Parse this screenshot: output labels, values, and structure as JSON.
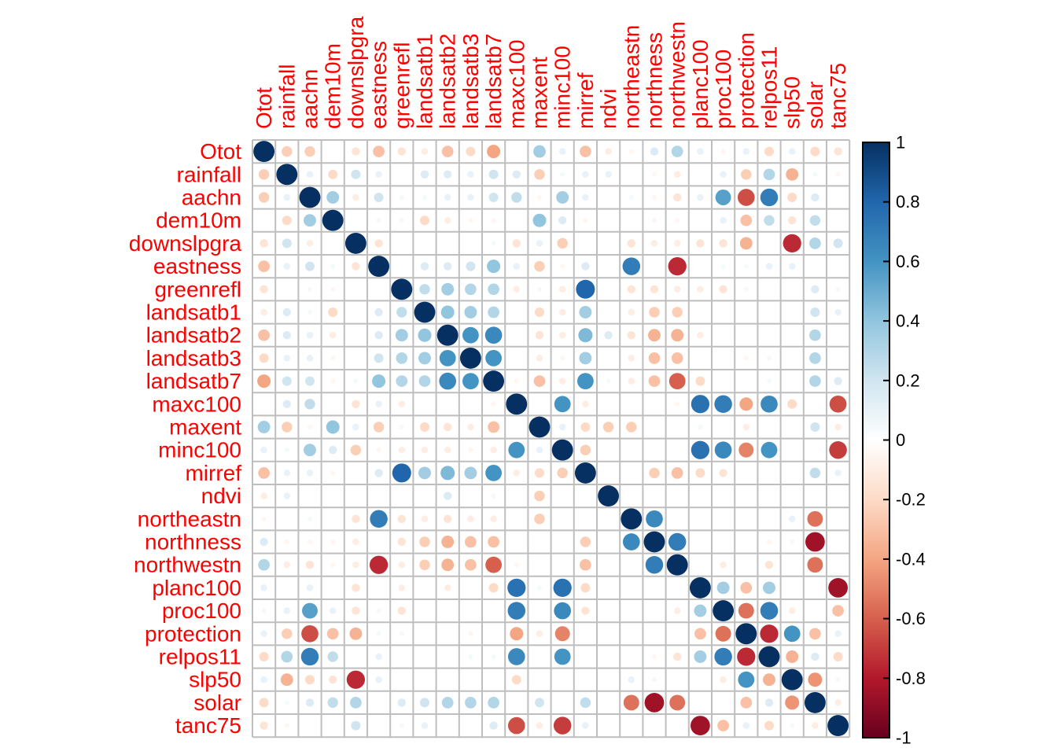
{
  "chart_data": {
    "type": "heatmap",
    "title": "",
    "variables": [
      "Otot",
      "rainfall",
      "aachn",
      "dem10m",
      "downslpgra",
      "eastness",
      "greenrefl",
      "landsatb1",
      "landsatb2",
      "landsatb3",
      "landsatb7",
      "maxc100",
      "maxent",
      "minc100",
      "mirref",
      "ndvi",
      "northeastn",
      "northness",
      "northwestn",
      "planc100",
      "proc100",
      "protection",
      "relpos11",
      "slp50",
      "solar",
      "tanc75"
    ],
    "label_color": "#FF0000",
    "colorbar": {
      "range": [
        -1,
        1
      ],
      "ticks": [
        "1",
        "0.8",
        "0.6",
        "0.4",
        "0.2",
        "0",
        "-0.2",
        "-0.4",
        "-0.6",
        "-0.8",
        "-1"
      ],
      "colors": [
        "#67001F",
        "#B2182B",
        "#D6604D",
        "#F4A582",
        "#FDDBC7",
        "#FFFFFF",
        "#D1E5F0",
        "#92C5DE",
        "#4393C3",
        "#2166AC",
        "#053061"
      ]
    },
    "correlations": {
      "Otot": {
        "rainfall": -0.25,
        "aachn": -0.25,
        "dem10m": 0,
        "downslpgra": -0.15,
        "eastness": -0.3,
        "greenrefl": -0.15,
        "landsatb1": -0.1,
        "landsatb2": -0.3,
        "landsatb3": -0.2,
        "landsatb7": -0.4,
        "maxc100": 0,
        "maxent": 0.35,
        "minc100": 0.1,
        "mirref": -0.3,
        "ndvi": -0.1,
        "northeastn": -0.05,
        "northness": 0.15,
        "northwestn": 0.3,
        "planc100": 0.1,
        "proc100": -0.05,
        "protection": 0.1,
        "relpos11": -0.2,
        "slp50": 0.1,
        "solar": -0.2,
        "tanc75": -0.15
      },
      "rainfall": {
        "aachn": 0.1,
        "dem10m": -0.2,
        "downslpgra": 0.2,
        "eastness": 0.1,
        "greenrefl": 0,
        "landsatb1": 0.15,
        "landsatb2": 0.15,
        "landsatb3": 0.1,
        "landsatb7": 0.2,
        "maxc100": 0.15,
        "maxent": -0.25,
        "minc100": 0.05,
        "mirref": 0.1,
        "ndvi": 0.1,
        "northeastn": 0,
        "northness": -0.05,
        "northwestn": -0.1,
        "planc100": 0,
        "proc100": 0.1,
        "protection": -0.25,
        "relpos11": 0.3,
        "slp50": -0.35,
        "solar": 0.05,
        "tanc75": -0.05
      },
      "aachn": {
        "dem10m": 0.35,
        "downslpgra": -0.1,
        "eastness": 0.2,
        "greenrefl": 0.05,
        "landsatb1": 0.05,
        "landsatb2": 0.1,
        "landsatb3": 0.1,
        "landsatb7": 0.2,
        "maxc100": 0.25,
        "maxent": -0.05,
        "minc100": 0.35,
        "mirref": 0.1,
        "ndvi": 0,
        "northeastn": 0.05,
        "northness": -0.05,
        "northwestn": -0.15,
        "planc100": 0.1,
        "proc100": 0.55,
        "protection": -0.65,
        "relpos11": 0.7,
        "slp50": -0.2,
        "solar": 0.15,
        "tanc75": 0
      },
      "dem10m": {
        "downslpgra": 0,
        "eastness": 0.05,
        "greenrefl": -0.05,
        "landsatb1": -0.2,
        "landsatb2": -0.1,
        "landsatb3": -0.05,
        "landsatb7": -0.05,
        "maxc100": 0,
        "maxent": 0.4,
        "minc100": 0.15,
        "mirref": -0.05,
        "ndvi": 0,
        "northeastn": 0,
        "northness": -0.05,
        "northwestn": -0.05,
        "planc100": 0,
        "proc100": 0.1,
        "protection": -0.3,
        "relpos11": 0.25,
        "slp50": -0.15,
        "solar": 0.25,
        "tanc75": 0
      },
      "downslpgra": {
        "eastness": -0.15,
        "greenrefl": 0,
        "landsatb1": 0,
        "landsatb2": 0,
        "landsatb3": 0,
        "landsatb7": 0.05,
        "maxc100": -0.15,
        "maxent": 0.1,
        "minc100": -0.25,
        "mirref": 0,
        "ndvi": 0,
        "northeastn": -0.15,
        "northness": -0.1,
        "northwestn": -0.1,
        "planc100": -0.15,
        "proc100": -0.15,
        "protection": -0.35,
        "relpos11": 0,
        "slp50": -0.75,
        "solar": 0.3,
        "tanc75": 0.2
      },
      "eastness": {
        "greenrefl": 0,
        "landsatb1": 0.15,
        "landsatb2": 0.15,
        "landsatb3": 0.2,
        "landsatb7": 0.4,
        "maxc100": 0.1,
        "maxent": -0.25,
        "minc100": -0.05,
        "mirref": 0.15,
        "ndvi": 0,
        "northeastn": 0.7,
        "northness": 0,
        "northwestn": -0.75,
        "planc100": 0,
        "proc100": 0.05,
        "protection": 0.05,
        "relpos11": 0.1,
        "slp50": 0.1,
        "solar": 0,
        "tanc75": 0
      },
      "greenrefl": {
        "landsatb1": 0.25,
        "landsatb2": 0.35,
        "landsatb3": 0.3,
        "landsatb7": 0.3,
        "maxc100": -0.1,
        "maxent": 0.05,
        "minc100": -0.1,
        "mirref": 0.8,
        "ndvi": 0,
        "northeastn": -0.15,
        "northness": -0.15,
        "northwestn": -0.1,
        "planc100": -0.1,
        "proc100": -0.15,
        "protection": 0.05,
        "relpos11": 0,
        "slp50": 0,
        "solar": 0.15,
        "tanc75": 0.05
      },
      "landsatb1": {
        "landsatb2": 0.4,
        "landsatb3": 0.35,
        "landsatb7": 0.3,
        "maxc100": 0,
        "maxent": -0.2,
        "minc100": -0.1,
        "mirref": 0.35,
        "ndvi": 0,
        "northeastn": -0.1,
        "northness": -0.25,
        "northwestn": -0.25,
        "planc100": 0,
        "proc100": 0,
        "protection": 0,
        "relpos11": 0,
        "slp50": 0,
        "solar": 0.2,
        "tanc75": 0.1
      },
      "landsatb2": {
        "landsatb3": 0.6,
        "landsatb7": 0.65,
        "maxc100": 0,
        "maxent": -0.15,
        "minc100": -0.1,
        "mirref": 0.45,
        "ndvi": 0.15,
        "northeastn": -0.15,
        "northness": -0.35,
        "northwestn": -0.35,
        "planc100": -0.1,
        "proc100": 0,
        "protection": 0,
        "relpos11": 0,
        "slp50": 0,
        "solar": 0.3,
        "tanc75": 0
      },
      "landsatb3": {
        "landsatb7": 0.6,
        "maxc100": 0,
        "maxent": -0.1,
        "minc100": -0.05,
        "mirref": 0.35,
        "ndvi": 0,
        "northeastn": -0.1,
        "northness": -0.3,
        "northwestn": -0.3,
        "planc100": 0,
        "proc100": 0,
        "protection": -0.05,
        "relpos11": 0.05,
        "slp50": 0,
        "solar": 0.3,
        "tanc75": 0
      },
      "landsatb7": {
        "maxc100": -0.05,
        "maxent": -0.3,
        "minc100": -0.1,
        "mirref": 0.6,
        "ndvi": 0.05,
        "northeastn": -0.1,
        "northness": -0.3,
        "northwestn": -0.6,
        "planc100": -0.2,
        "proc100": 0,
        "protection": 0,
        "relpos11": 0.05,
        "slp50": 0,
        "solar": 0.3,
        "tanc75": 0.15
      },
      "maxc100": {
        "maxent": 0,
        "minc100": 0.6,
        "mirref": -0.1,
        "ndvi": 0,
        "northeastn": 0,
        "northness": 0,
        "northwestn": -0.05,
        "planc100": 0.75,
        "proc100": 0.7,
        "protection": -0.4,
        "relpos11": 0.65,
        "slp50": -0.2,
        "solar": 0,
        "tanc75": -0.65
      },
      "maxent": {
        "minc100": 0.1,
        "mirref": -0.2,
        "ndvi": -0.25,
        "northeastn": -0.25,
        "northness": 0,
        "northwestn": 0,
        "planc100": 0.05,
        "proc100": 0,
        "protection": -0.1,
        "relpos11": 0,
        "slp50": 0,
        "solar": 0.2,
        "tanc75": -0.1
      },
      "minc100": {
        "mirref": -0.25,
        "ndvi": 0,
        "northeastn": 0,
        "northness": 0,
        "northwestn": 0,
        "planc100": 0.75,
        "proc100": 0.65,
        "protection": -0.5,
        "relpos11": 0.6,
        "slp50": 0,
        "solar": 0,
        "tanc75": -0.7
      },
      "mirref": {
        "ndvi": 0,
        "northeastn": 0,
        "northness": -0.25,
        "northwestn": -0.3,
        "planc100": -0.2,
        "proc100": -0.15,
        "protection": 0,
        "relpos11": 0,
        "slp50": 0,
        "solar": 0.25,
        "tanc75": 0.1
      },
      "ndvi": {
        "northeastn": 0,
        "northness": 0,
        "northwestn": 0,
        "planc100": 0,
        "proc100": 0,
        "protection": 0,
        "relpos11": 0,
        "slp50": 0,
        "solar": 0,
        "tanc75": 0
      },
      "northeastn": {
        "northness": 0.65,
        "northwestn": 0,
        "planc100": 0,
        "proc100": 0,
        "protection": 0,
        "relpos11": 0,
        "slp50": 0.1,
        "solar": -0.55,
        "tanc75": 0
      },
      "northness": {
        "northwestn": 0.7,
        "planc100": 0,
        "proc100": 0,
        "protection": 0,
        "relpos11": -0.05,
        "slp50": 0.05,
        "solar": -0.85,
        "tanc75": 0
      },
      "northwestn": {
        "planc100": 0,
        "proc100": -0.1,
        "protection": 0,
        "relpos11": -0.15,
        "slp50": 0,
        "solar": -0.55,
        "tanc75": 0
      },
      "planc100": {
        "proc100": 0.35,
        "protection": -0.3,
        "relpos11": 0.35,
        "slp50": 0,
        "solar": 0,
        "tanc75": -0.85
      },
      "proc100": {
        "protection": -0.55,
        "relpos11": 0.7,
        "slp50": -0.1,
        "solar": 0,
        "tanc75": -0.3
      },
      "protection": {
        "relpos11": -0.75,
        "slp50": 0.6,
        "solar": -0.3,
        "tanc75": 0.1
      },
      "relpos11": {
        "slp50": -0.35,
        "solar": 0.15,
        "tanc75": -0.2
      },
      "slp50": {
        "solar": -0.45,
        "tanc75": 0.05
      },
      "solar": {
        "tanc75": -0.1
      }
    }
  }
}
